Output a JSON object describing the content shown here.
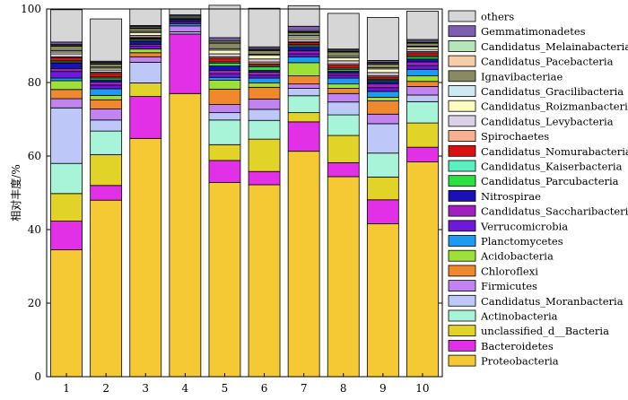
{
  "chart_data": {
    "type": "bar",
    "stacked": true,
    "ylabel": "相对丰度/%",
    "xlabel": "",
    "ylim": [
      0,
      100
    ],
    "yticks": [
      0,
      20,
      40,
      60,
      80,
      100
    ],
    "categories": [
      "1",
      "2",
      "3",
      "4",
      "5",
      "6",
      "7",
      "8",
      "9",
      "10"
    ],
    "legend_position": "right",
    "series": [
      {
        "name": "Proteobacteria",
        "color": "#F5C933",
        "values": [
          34.5,
          48.0,
          64.8,
          77.0,
          52.8,
          52.2,
          61.3,
          54.4,
          41.6,
          58.4
        ]
      },
      {
        "name": "Bacteroidetes",
        "color": "#E130E6",
        "values": [
          7.8,
          4.0,
          11.4,
          16.2,
          6.0,
          3.6,
          8.0,
          3.8,
          6.5,
          4.0
        ]
      },
      {
        "name": "unclassified_d__Bacteria",
        "color": "#E2D328",
        "values": [
          7.5,
          8.4,
          3.7,
          0.0,
          4.3,
          8.8,
          2.5,
          7.4,
          6.2,
          6.6
        ]
      },
      {
        "name": "Actinobacteria",
        "color": "#A8F4D8",
        "values": [
          8.2,
          6.4,
          0.0,
          0.0,
          6.7,
          5.1,
          4.6,
          5.6,
          6.5,
          5.8
        ]
      },
      {
        "name": "Candidatus_Moranbacteria",
        "color": "#BDC8F8",
        "values": [
          15.1,
          3.0,
          5.6,
          0.6,
          2.0,
          3.0,
          2.0,
          3.5,
          8.0,
          1.8
        ]
      },
      {
        "name": "Firmicutes",
        "color": "#C083F0",
        "values": [
          2.5,
          3.0,
          1.5,
          1.6,
          2.2,
          2.8,
          1.2,
          2.3,
          2.6,
          2.3
        ]
      },
      {
        "name": "Chloroflexi",
        "color": "#F0882E",
        "values": [
          2.5,
          2.5,
          1.1,
          0.0,
          4.2,
          3.2,
          2.2,
          1.4,
          3.6,
          1.4
        ]
      },
      {
        "name": "Acidobacteria",
        "color": "#9DE038",
        "values": [
          2.4,
          1.2,
          1.0,
          0.0,
          2.4,
          1.2,
          3.6,
          1.2,
          1.0,
          1.5
        ]
      },
      {
        "name": "Planctomycetes",
        "color": "#1C9BF0",
        "values": [
          0.7,
          1.8,
          0.0,
          0.6,
          0.8,
          1.3,
          1.6,
          1.6,
          1.6,
          1.8
        ]
      },
      {
        "name": "Verrucomicrobia",
        "color": "#6E18D8",
        "values": [
          1.8,
          1.0,
          0.8,
          0.5,
          1.0,
          0.8,
          0.8,
          0.8,
          1.0,
          1.0
        ]
      },
      {
        "name": "Candidatus_Saccharibacteria",
        "color": "#A320C0",
        "values": [
          0.8,
          0.8,
          0.5,
          0.3,
          0.9,
          0.8,
          0.8,
          0.6,
          1.0,
          1.0
        ]
      },
      {
        "name": "Nitrospirae",
        "color": "#1A10B8",
        "values": [
          1.5,
          0.6,
          0.8,
          0.4,
          1.2,
          0.5,
          1.0,
          0.5,
          0.7,
          0.8
        ]
      },
      {
        "name": "Candidatus_Parcubacteria",
        "color": "#2BE040",
        "values": [
          0.3,
          0.5,
          0.3,
          0.3,
          0.8,
          1.0,
          0.4,
          0.5,
          0.3,
          0.6
        ]
      },
      {
        "name": "Candidatus_Kaiserbacteria",
        "color": "#5CF0C0",
        "values": [
          0.3,
          0.3,
          0.3,
          0.0,
          0.3,
          0.3,
          0.3,
          0.3,
          0.3,
          0.3
        ]
      },
      {
        "name": "Candidatus_Nomurabacteria",
        "color": "#D81010",
        "values": [
          0.8,
          1.0,
          0.3,
          0.0,
          1.0,
          0.5,
          0.6,
          0.8,
          0.6,
          0.8
        ]
      },
      {
        "name": "Spirochaetes",
        "color": "#F8B090",
        "values": [
          0.3,
          0.3,
          0.3,
          0.0,
          0.4,
          0.5,
          0.3,
          0.4,
          0.4,
          0.3
        ]
      },
      {
        "name": "Candidatus_Levybacteria",
        "color": "#DAD0E8",
        "values": [
          0.8,
          0.6,
          0.4,
          0.3,
          0.8,
          0.8,
          0.6,
          0.8,
          0.8,
          0.6
        ]
      },
      {
        "name": "Candidatus_Roizmanbacteria",
        "color": "#FDFBC0",
        "values": [
          0.5,
          0.5,
          0.8,
          0.3,
          1.0,
          1.0,
          0.6,
          0.8,
          1.0,
          0.6
        ]
      },
      {
        "name": "Candidatus_Gracilibacteria",
        "color": "#CDEAF2",
        "values": [
          0.4,
          0.3,
          0.3,
          0.0,
          0.4,
          0.3,
          0.4,
          0.4,
          0.3,
          0.3
        ]
      },
      {
        "name": "Ignavibacteriae",
        "color": "#8A8A62",
        "values": [
          1.2,
          0.8,
          0.8,
          0.0,
          1.5,
          1.0,
          0.8,
          1.2,
          1.0,
          0.8
        ]
      },
      {
        "name": "Candidatus_Pacebacteria",
        "color": "#F8CCA6",
        "values": [
          0.2,
          0.2,
          0.2,
          0.0,
          0.3,
          0.2,
          0.2,
          0.2,
          0.2,
          0.2
        ]
      },
      {
        "name": "Candidatus_Melainabacteria",
        "color": "#B6E6B8",
        "values": [
          0.3,
          0.3,
          0.3,
          0.0,
          0.4,
          0.3,
          0.3,
          0.3,
          0.3,
          0.3
        ]
      },
      {
        "name": "Gemmatimonadetes",
        "color": "#7E5EAE",
        "values": [
          0.6,
          0.3,
          0.3,
          0.3,
          0.8,
          0.5,
          1.2,
          0.3,
          0.5,
          0.5
        ]
      },
      {
        "name": "others",
        "color": "#D6D6D6",
        "values": [
          8.8,
          11.5,
          4.5,
          1.6,
          8.8,
          10.5,
          5.6,
          9.7,
          11.7,
          7.7
        ]
      }
    ]
  }
}
